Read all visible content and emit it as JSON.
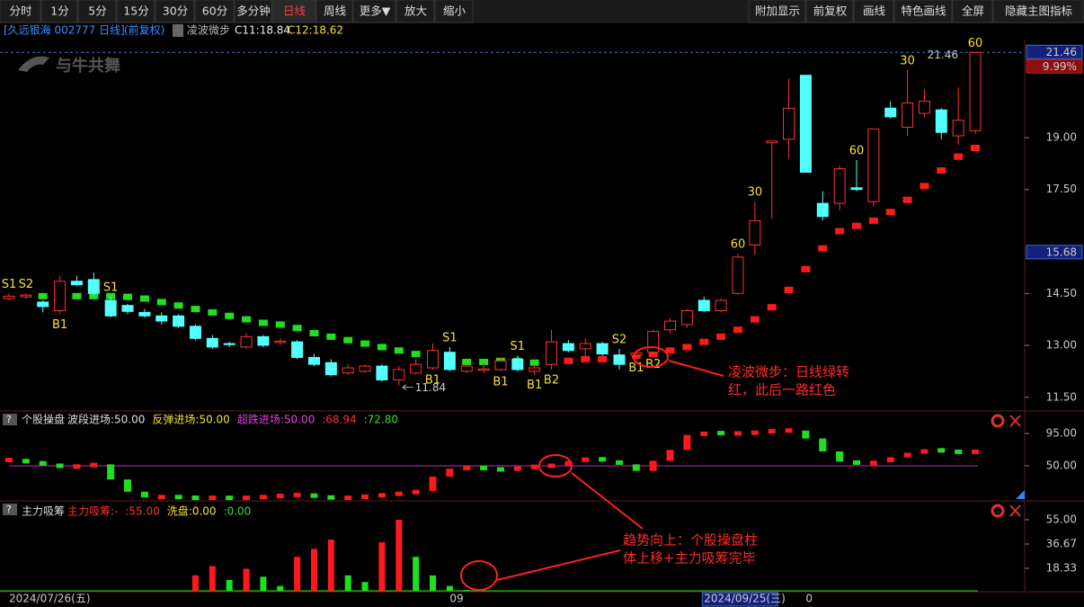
{
  "toolbar": {
    "left": [
      "分时",
      "1分",
      "5分",
      "15分",
      "30分",
      "60分",
      "多分钟",
      "日线",
      "周线",
      "更多▼",
      "放大",
      "缩小"
    ],
    "right": [
      "附加显示",
      "前复权",
      "画线",
      "特色画线",
      "全屏",
      "隐藏主图指标"
    ],
    "active": "日线"
  },
  "header": {
    "stock": "[久远银海 002777 日线]",
    "adjust": "(前复权)",
    "indicator": "凌波微步",
    "c11": "C11:18.84",
    "c12": "C12:18.62",
    "watermark": "与牛共舞"
  },
  "chart_data": [
    {
      "type": "candlestick",
      "up_color": "#ff3232",
      "down_color": "#54ffff",
      "open": [
        14.35,
        14.4,
        14.25,
        14.0,
        14.85,
        14.9,
        14.3,
        14.15,
        13.95,
        13.85,
        13.85,
        13.55,
        13.2,
        13.05,
        12.95,
        13.25,
        13.08,
        13.1,
        12.65,
        12.5,
        12.2,
        12.25,
        12.4,
        12.0,
        12.2,
        12.35,
        12.8,
        12.25,
        12.28,
        12.3,
        12.6,
        12.25,
        12.45,
        13.05,
        12.9,
        13.05,
        12.72,
        12.72,
        12.8,
        13.45,
        13.6,
        14.3,
        14.0,
        14.5,
        15.9,
        18.85,
        18.95,
        20.8,
        17.1,
        17.1,
        17.55,
        17.15,
        19.85,
        19.3,
        19.7,
        19.8,
        19.05,
        19.2
      ],
      "high": [
        14.5,
        14.5,
        14.3,
        15.0,
        15.0,
        15.1,
        14.4,
        14.2,
        14.05,
        13.95,
        13.9,
        13.6,
        13.3,
        13.1,
        13.35,
        13.3,
        13.2,
        13.15,
        12.75,
        12.6,
        12.45,
        12.45,
        12.45,
        12.4,
        12.6,
        13.05,
        12.95,
        12.45,
        12.5,
        12.65,
        12.7,
        12.45,
        13.45,
        13.15,
        13.2,
        13.1,
        12.9,
        12.85,
        13.45,
        13.8,
        14.05,
        14.4,
        14.35,
        15.65,
        17.15,
        18.9,
        20.7,
        20.8,
        17.45,
        18.2,
        18.35,
        19.25,
        20.05,
        20.95,
        20.4,
        19.85,
        20.45,
        21.46
      ],
      "low": [
        14.3,
        14.35,
        13.95,
        13.9,
        14.7,
        14.45,
        13.8,
        13.9,
        13.8,
        13.6,
        13.5,
        13.15,
        12.9,
        12.95,
        12.9,
        12.95,
        13.0,
        12.6,
        12.4,
        12.1,
        12.15,
        12.2,
        11.95,
        11.84,
        12.15,
        12.3,
        12.25,
        12.2,
        12.2,
        12.25,
        12.25,
        12.15,
        12.3,
        12.8,
        12.7,
        12.7,
        12.3,
        12.65,
        12.75,
        13.35,
        13.5,
        13.95,
        13.95,
        14.45,
        15.6,
        16.65,
        18.4,
        18.0,
        16.6,
        16.9,
        17.45,
        17.0,
        19.55,
        19.05,
        19.6,
        18.95,
        18.8,
        19.1
      ],
      "close": [
        14.42,
        14.45,
        14.12,
        14.85,
        14.75,
        14.5,
        13.85,
        13.98,
        13.85,
        13.7,
        13.55,
        13.2,
        12.95,
        13.02,
        13.25,
        13.0,
        13.12,
        12.65,
        12.45,
        12.15,
        12.35,
        12.4,
        12.0,
        12.3,
        12.45,
        12.85,
        12.3,
        12.4,
        12.32,
        12.55,
        12.3,
        12.35,
        13.1,
        12.85,
        13.05,
        12.75,
        12.45,
        12.78,
        13.4,
        13.7,
        14.0,
        14.0,
        14.3,
        15.55,
        16.6,
        18.9,
        19.85,
        18.0,
        16.72,
        18.1,
        17.5,
        19.25,
        19.6,
        20.0,
        20.05,
        19.15,
        19.5,
        21.46
      ],
      "step_down": {
        "color": "#1fe01f",
        "values": [
          null,
          null,
          14.42,
          14.42,
          14.42,
          14.42,
          14.42,
          14.4,
          14.35,
          14.25,
          14.15,
          14.05,
          13.95,
          13.85,
          13.75,
          13.65,
          13.6,
          13.5,
          13.35,
          13.25,
          13.15,
          13.05,
          12.95,
          12.85,
          12.75,
          12.65,
          12.55,
          12.52,
          12.52,
          12.55,
          12.55,
          12.5,
          null,
          null,
          null,
          null,
          null,
          null,
          null,
          null,
          null,
          null,
          null,
          null,
          null,
          null,
          null,
          null,
          null,
          null,
          null,
          null,
          null,
          null,
          null,
          null,
          null,
          null
        ]
      },
      "step_up": {
        "color": "#ff1a1a",
        "values": [
          null,
          null,
          null,
          null,
          null,
          null,
          null,
          null,
          null,
          null,
          null,
          null,
          null,
          null,
          null,
          null,
          null,
          null,
          null,
          null,
          null,
          null,
          null,
          null,
          null,
          null,
          null,
          null,
          null,
          null,
          null,
          null,
          12.55,
          12.55,
          12.6,
          12.6,
          12.65,
          12.7,
          12.75,
          12.85,
          12.95,
          13.1,
          13.25,
          13.45,
          13.75,
          14.1,
          14.6,
          15.2,
          15.8,
          16.3,
          16.45,
          16.6,
          16.85,
          17.2,
          17.6,
          18.05,
          18.45,
          18.7
        ]
      },
      "ylim": [
        11.156,
        21.805
      ],
      "yticks": [
        {
          "value": 19,
          "label": "19.00"
        },
        {
          "value": 17.5,
          "label": "17.50"
        },
        {
          "value": 14.5,
          "label": "14.50"
        },
        {
          "value": 13,
          "label": "13.00"
        },
        {
          "value": 11.5,
          "label": "11.50"
        }
      ],
      "last_price": {
        "value": 21.46,
        "label": "21.46"
      },
      "pct_label": "9.99%",
      "prev_close": {
        "value": 15.68,
        "label": "15.68"
      },
      "high_mark": 21.46,
      "high_index": 57,
      "low_mark": 11.84,
      "low_index": 23,
      "signals": [
        {
          "text": "S1",
          "at": 0,
          "side": "above"
        },
        {
          "text": "S2",
          "at": 1,
          "side": "above"
        },
        {
          "text": "B1",
          "at": 3,
          "side": "below"
        },
        {
          "text": "S1",
          "at": 6,
          "side": "above"
        },
        {
          "text": "B1",
          "at": 25,
          "side": "below"
        },
        {
          "text": "S1",
          "at": 26,
          "side": "above"
        },
        {
          "text": "B1",
          "at": 29,
          "side": "below"
        },
        {
          "text": "S1",
          "at": 30,
          "side": "above"
        },
        {
          "text": "B1",
          "at": 31,
          "side": "below"
        },
        {
          "text": "B2",
          "at": 32,
          "side": "below"
        },
        {
          "text": "S2",
          "at": 36,
          "side": "above"
        },
        {
          "text": "B1",
          "at": 37,
          "side": "below"
        },
        {
          "text": "B2",
          "at": 38,
          "side": "below"
        },
        {
          "text": "60",
          "at": 43,
          "side": "above"
        },
        {
          "text": "30",
          "at": 44,
          "side": "above"
        },
        {
          "text": "60",
          "at": 50,
          "side": "above"
        },
        {
          "text": "30",
          "at": 53,
          "side": "above"
        },
        {
          "text": "60",
          "at": 57,
          "side": "above"
        }
      ],
      "notes": [
        "凌波微步：日线绿转",
        "红，此后一路红色",
        "趋势向上：个股操盘柱",
        "体上移+主力吸筹完毕"
      ],
      "x_labels": [
        {
          "at": 0,
          "label": "2024/07/26(五)"
        },
        {
          "at": 26,
          "label": "09"
        },
        {
          "at": 41,
          "label": "2024/09/25(三)"
        },
        {
          "at": 47,
          "label": "0"
        }
      ]
    },
    {
      "type": "bar",
      "title": "个股操盘",
      "legend": [
        {
          "label": "波段进场:50.00",
          "color": "#e0e0e0"
        },
        {
          "label": "反弹进场:50.00",
          "color": "#f0e040"
        },
        {
          "label": "超跌进场:50.00",
          "color": "#e040e0"
        },
        {
          "label": ":68.94",
          "color": "#ff3232"
        },
        {
          "label": ":72.80",
          "color": "#30e030"
        }
      ],
      "values": [
        58,
        55,
        52,
        48,
        50,
        52,
        31,
        14,
        6,
        7,
        6,
        5,
        6,
        5,
        6,
        7,
        9,
        10,
        7,
        5,
        6,
        8,
        10,
        12,
        15,
        35,
        46,
        48,
        46,
        44,
        48,
        49,
        51,
        56,
        61,
        57,
        52,
        43,
        57,
        72,
        93,
        96,
        95,
        95,
        97,
        99,
        99,
        88,
        70,
        56,
        53,
        55,
        62,
        68,
        72,
        71,
        68,
        71
      ],
      "level": 50,
      "level_color": "#d020d0",
      "up_color": "#ff1a1a",
      "down_color": "#1fe01f",
      "ylim": [
        3.75,
        125
      ],
      "yticks": [
        {
          "value": 95,
          "label": "95.00"
        },
        {
          "value": 50,
          "label": "50.00"
        }
      ]
    },
    {
      "type": "bar",
      "title": "主力吸筹",
      "legend": [
        {
          "label": "主力吸筹:-",
          "color": "#ff3232"
        },
        {
          "label": ":55.00",
          "color": "#ff3232"
        },
        {
          "label": "洗盘:0.00",
          "color": "#f0e040"
        },
        {
          "label": ":0.00",
          "color": "#30e030"
        }
      ],
      "series": [
        {
          "name": "主力吸筹",
          "color": "#ff1a1a",
          "values": [
            null,
            null,
            null,
            null,
            null,
            null,
            null,
            null,
            null,
            null,
            null,
            13,
            20,
            null,
            18,
            null,
            null,
            27,
            33,
            40,
            null,
            null,
            38,
            55,
            null,
            null,
            null,
            null,
            null,
            null,
            null,
            null,
            null,
            null,
            null,
            null,
            null,
            null,
            null,
            null,
            null,
            null,
            null,
            null,
            null,
            null,
            null,
            null,
            null,
            null,
            null,
            null,
            null,
            null,
            null,
            null,
            null,
            null
          ]
        },
        {
          "name": "洗盘",
          "color": "#1fe01f",
          "values": [
            null,
            null,
            null,
            null,
            null,
            null,
            null,
            null,
            null,
            null,
            null,
            null,
            null,
            9.5,
            null,
            12,
            5,
            null,
            null,
            null,
            13,
            8,
            null,
            null,
            27,
            13,
            5,
            2,
            1,
            null,
            null,
            null,
            null,
            null,
            null,
            null,
            null,
            null,
            null,
            null,
            null,
            null,
            null,
            null,
            null,
            null,
            null,
            null,
            null,
            null,
            null,
            null,
            null,
            null,
            null,
            null,
            null,
            null
          ]
        }
      ],
      "ylim": [
        0,
        67.2
      ],
      "yticks": [
        {
          "value": 55,
          "label": "55.00"
        },
        {
          "value": 36.67,
          "label": "36.67"
        },
        {
          "value": 18.33,
          "label": "18.33"
        }
      ]
    }
  ]
}
